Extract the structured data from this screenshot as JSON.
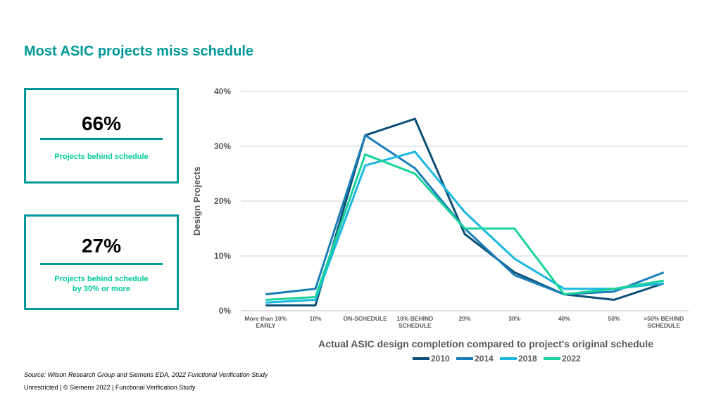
{
  "slide": {
    "title": "Most ASIC projects miss schedule",
    "source": "Source:  Wilson Research Group and Siemens EDA, 2022 Functional Verification Study",
    "footer": "Unrestricted | © Siemens 2022 |  Functional Verification Study"
  },
  "stats": [
    {
      "value": "66%",
      "caption": "Projects behind schedule"
    },
    {
      "value": "27%",
      "caption_line1": "Projects behind schedule",
      "caption_line2": "by 30% or more"
    }
  ],
  "chart_data": {
    "type": "line",
    "title": "",
    "xlabel": "Actual ASIC design completion compared to project's original schedule",
    "ylabel": "Design Projects",
    "ylim": [
      0,
      40
    ],
    "yticks": [
      "0%",
      "10%",
      "20%",
      "30%",
      "40%"
    ],
    "categories": [
      [
        "More than 10%",
        "EARLY"
      ],
      [
        "10%"
      ],
      [
        "ON-SCHEDULE"
      ],
      [
        "10% BEHIND",
        "SCHEDULE"
      ],
      [
        "20%"
      ],
      [
        "30%"
      ],
      [
        "40%"
      ],
      [
        "50%"
      ],
      [
        ">50% BEHIND",
        "SCHEDULE"
      ]
    ],
    "grid": true,
    "legend": "bottom",
    "series": [
      {
        "name": "2010",
        "color": "#0b4f75",
        "values": [
          1,
          1,
          32,
          35,
          14,
          7,
          3,
          2,
          5
        ]
      },
      {
        "name": "2014",
        "color": "#1a7fb8",
        "values": [
          3,
          4,
          32,
          26,
          15,
          6.5,
          3,
          3.5,
          7
        ]
      },
      {
        "name": "2018",
        "color": "#1ab8e0",
        "values": [
          1.5,
          2,
          26.5,
          29,
          18,
          9.5,
          4,
          4,
          5
        ]
      },
      {
        "name": "2022",
        "color": "#19d39b",
        "values": [
          2,
          2.5,
          28.5,
          25,
          15,
          15,
          3,
          4,
          5.5
        ]
      }
    ]
  }
}
